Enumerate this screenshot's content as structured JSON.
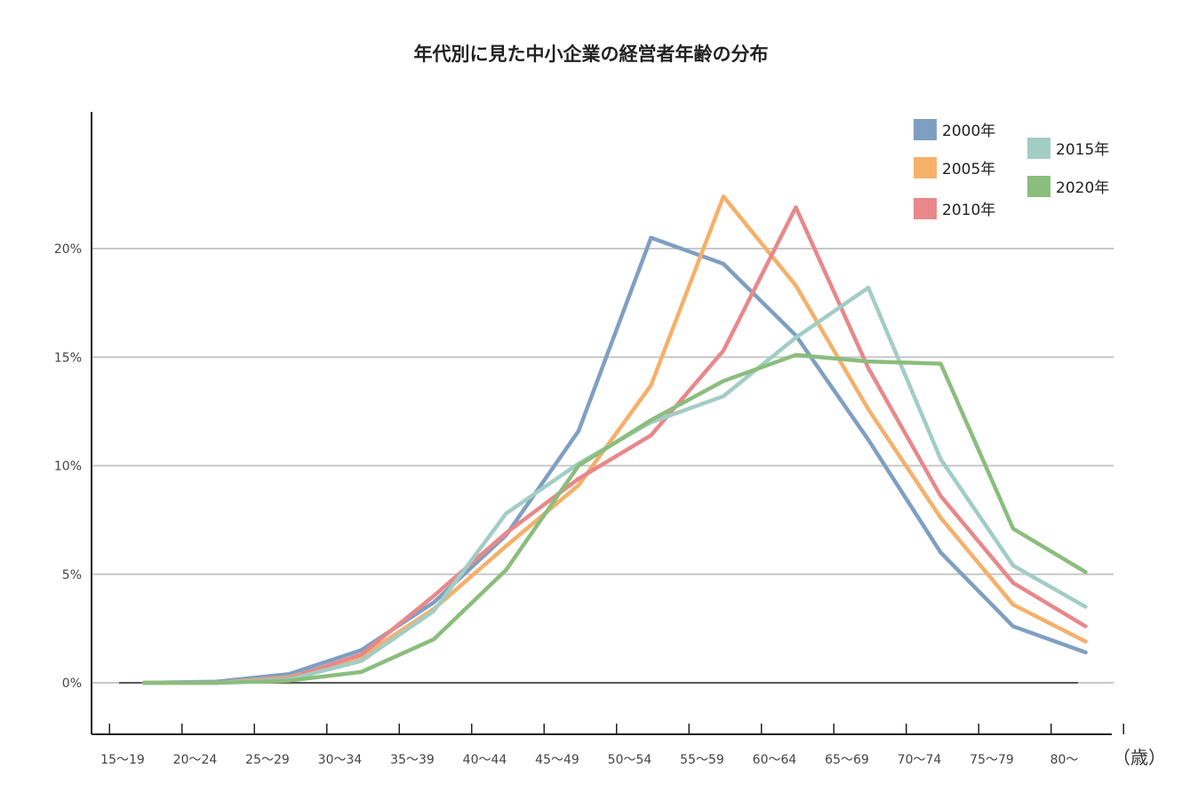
{
  "chart_data": {
    "type": "line",
    "title": "年代別に見た中小企業の経営者年齢の分布",
    "xlabel": "（歳）",
    "ylabel": "",
    "ylim": [
      -2.4,
      26
    ],
    "y_ticks": [
      0,
      5,
      10,
      15,
      20
    ],
    "y_tick_labels": [
      "0%",
      "5%",
      "10%",
      "15%",
      "20%"
    ],
    "grid": true,
    "legend_position": "top-right",
    "categories": [
      "15～19",
      "20～24",
      "25～29",
      "30～34",
      "35～39",
      "40～44",
      "45～49",
      "50～54",
      "55～59",
      "60～64",
      "65～69",
      "70～74",
      "75～79",
      "80～"
    ],
    "series": [
      {
        "name": "2000年",
        "color": "#7f9fc2",
        "values": [
          0.0,
          0.05,
          0.4,
          1.5,
          3.7,
          6.8,
          11.6,
          20.5,
          19.3,
          16.0,
          11.2,
          6.0,
          2.6,
          1.4
        ]
      },
      {
        "name": "2005年",
        "color": "#f5b06a",
        "values": [
          0.0,
          0.0,
          0.25,
          1.2,
          3.4,
          6.3,
          9.1,
          13.7,
          22.4,
          18.3,
          12.6,
          7.6,
          3.6,
          1.9
        ]
      },
      {
        "name": "2010年",
        "color": "#e8888a",
        "values": [
          0.0,
          0.0,
          0.2,
          1.3,
          4.0,
          6.9,
          9.4,
          11.4,
          15.3,
          21.9,
          14.5,
          8.6,
          4.6,
          2.6
        ]
      },
      {
        "name": "2015年",
        "color": "#a2cdc5",
        "values": [
          0.0,
          0.0,
          0.15,
          1.0,
          3.3,
          7.8,
          10.1,
          12.0,
          13.2,
          15.9,
          18.2,
          10.3,
          5.4,
          3.5
        ]
      },
      {
        "name": "2020年",
        "color": "#8bbd7d",
        "values": [
          0.0,
          0.0,
          0.1,
          0.5,
          2.0,
          5.2,
          10.0,
          12.1,
          13.9,
          15.1,
          14.8,
          14.7,
          7.1,
          5.1
        ]
      }
    ]
  }
}
